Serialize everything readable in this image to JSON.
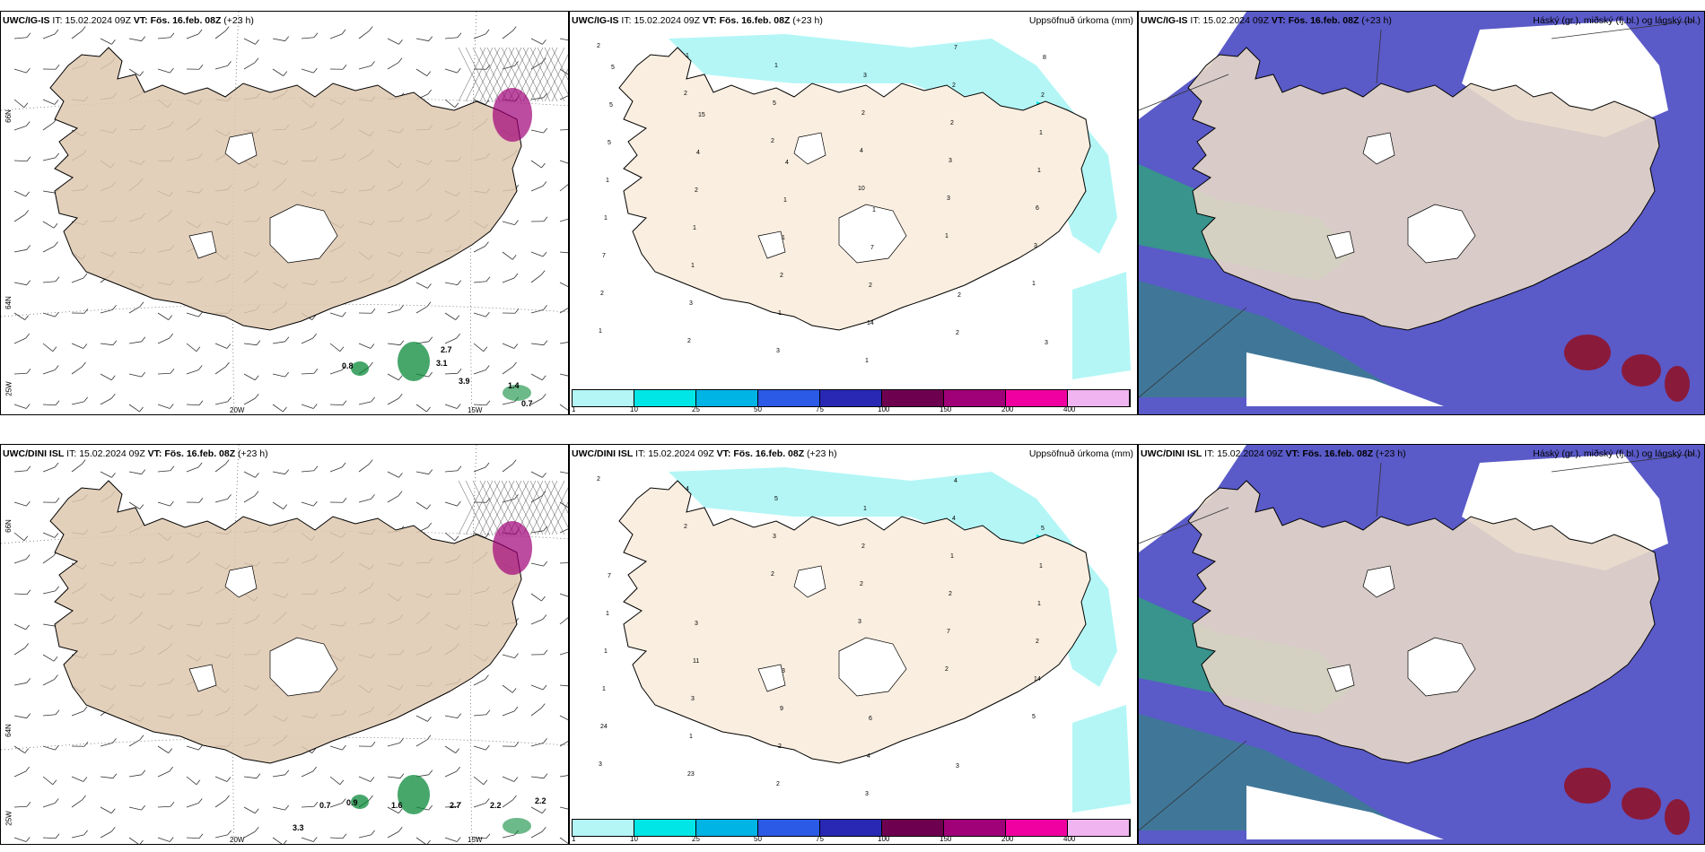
{
  "rows": [
    {
      "model": "UWC/IG-IS",
      "panels": [
        {
          "it_label": "IT:",
          "it_value": "15.02.2024 09Z",
          "vt_label": "VT:",
          "vt_value": "Fös. 16.feb. 08Z",
          "lead": "(+23 h)",
          "right": ""
        },
        {
          "it_label": "IT:",
          "it_value": "15.02.2024 09Z",
          "vt_label": "VT:",
          "vt_value": "Fös. 16.feb. 08Z",
          "lead": "(+23 h)",
          "right": "Uppsöfnuð úrkoma (mm)"
        },
        {
          "it_label": "IT:",
          "it_value": "15.02.2024 09Z",
          "vt_label": "VT:",
          "vt_value": "Fös. 16.feb. 08Z",
          "lead": "(+23 h)",
          "right": "Háský (gr.), miðský (fj.bl.) og lágský (bl.)"
        }
      ]
    },
    {
      "model": "UWC/DINI ISL",
      "panels": [
        {
          "it_label": "IT:",
          "it_value": "15.02.2024 09Z",
          "vt_label": "VT:",
          "vt_value": "Fös. 16.feb. 08Z",
          "lead": "(+23 h)",
          "right": ""
        },
        {
          "it_label": "IT:",
          "it_value": "15.02.2024 09Z",
          "vt_label": "VT:",
          "vt_value": "Fös. 16.feb. 08Z",
          "lead": "(+23 h)",
          "right": "Uppsöfnuð úrkoma (mm)"
        },
        {
          "it_label": "IT:",
          "it_value": "15.02.2024 09Z",
          "vt_label": "VT:",
          "vt_value": "Fös. 16.feb. 08Z",
          "lead": "(+23 h)",
          "right": "Háský (gr.), miðský (fj.bl.) og lágský (bl.)"
        }
      ]
    }
  ],
  "axis_labels": {
    "lat66": "66N",
    "lat64": "64N",
    "lon20": "20W",
    "lon15": "15W",
    "lon25": "25W"
  },
  "legend": {
    "values": [
      "1",
      "10",
      "25",
      "50",
      "75",
      "100",
      "150",
      "200",
      "400"
    ],
    "colors": [
      "#b4f6f6",
      "#00e6e6",
      "#00b4e6",
      "#2a5ae6",
      "#2828b4",
      "#6e0050",
      "#a00078",
      "#f000a0",
      "#f0b4f0"
    ]
  },
  "precip_labels_top": [
    "2",
    "2",
    "2",
    "10",
    "1",
    "1",
    "1",
    "1",
    "5",
    "4",
    "3",
    "3",
    "2",
    "2",
    "1",
    "2",
    "3",
    "6",
    "7",
    "3",
    "3",
    "3",
    "2",
    "1",
    "1",
    "1",
    "1",
    "1",
    "2",
    "1",
    "1",
    "1",
    "2",
    "14",
    "7",
    "2",
    "5",
    "2",
    "1",
    "2",
    "2",
    "8",
    "5",
    "4",
    "1",
    "7",
    "2",
    "3",
    "5",
    "15",
    "4",
    "1"
  ],
  "precip_labels_bottom": [
    "2",
    "2",
    "2",
    "3",
    "2",
    "5",
    "3",
    "4",
    "3",
    "2",
    "7",
    "14",
    "24",
    "23",
    "5",
    "2",
    "2",
    "2",
    "1",
    "1",
    "2",
    "1",
    "1",
    "1",
    "1",
    "3",
    "2",
    "3",
    "4",
    "1",
    "1",
    "11",
    "9",
    "4",
    "4",
    "5",
    "7",
    "3",
    "3",
    "6",
    "3"
  ],
  "wind_labels_top": [
    "2.7",
    "3.1",
    "3.9",
    "0.8",
    "0.7",
    "1.4"
  ],
  "wind_labels_bottom": [
    "0.7",
    "0.9",
    "1.6",
    "2.7",
    "2.2",
    "2.2",
    "3.3"
  ]
}
